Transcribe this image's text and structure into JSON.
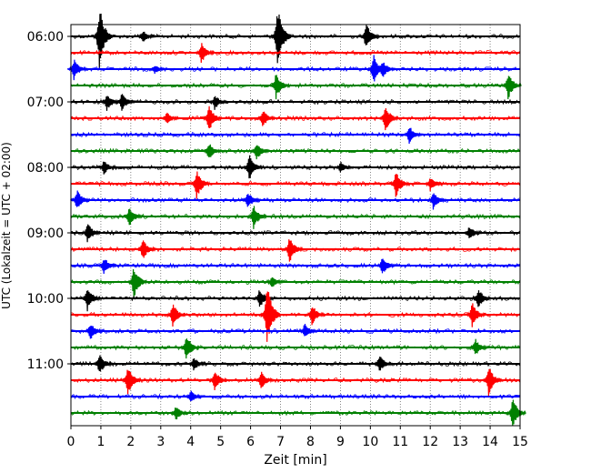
{
  "chart_data": {
    "type": "line",
    "title": "",
    "xlabel": "Zeit  [min]",
    "ylabel": "UTC (Lokalzeit = UTC + 02:00)",
    "xlim": [
      0,
      15
    ],
    "x_ticks": [
      "0",
      "1",
      "2",
      "3",
      "4",
      "5",
      "6",
      "7",
      "8",
      "9",
      "10",
      "11",
      "12",
      "13",
      "14",
      "15"
    ],
    "y_tick_labels": [
      "06:00",
      "07:00",
      "08:00",
      "09:00",
      "10:00",
      "11:00"
    ],
    "grid": "vertical dotted lines at each minute",
    "trace_minutes": 15,
    "trace_colors": [
      "#000000",
      "#ff0000",
      "#0000ff",
      "#008000"
    ],
    "traces": [
      {
        "start": "06:00",
        "color": "#000000",
        "events": [
          {
            "t": 0.95,
            "amp": 1.0
          },
          {
            "t": 2.4,
            "amp": 0.22
          },
          {
            "t": 6.9,
            "amp": 1.0
          },
          {
            "t": 9.85,
            "amp": 0.45
          }
        ]
      },
      {
        "start": "06:15",
        "color": "#ff0000",
        "events": [
          {
            "t": 4.35,
            "amp": 0.35
          }
        ]
      },
      {
        "start": "06:30",
        "color": "#0000ff",
        "events": [
          {
            "t": 0.1,
            "amp": 0.35
          },
          {
            "t": 2.8,
            "amp": 0.15
          },
          {
            "t": 10.1,
            "amp": 0.5
          },
          {
            "t": 10.4,
            "amp": 0.3
          }
        ]
      },
      {
        "start": "06:45",
        "color": "#008000",
        "events": [
          {
            "t": 6.85,
            "amp": 0.45
          },
          {
            "t": 14.6,
            "amp": 0.45
          }
        ]
      },
      {
        "start": "07:00",
        "color": "#000000",
        "events": [
          {
            "t": 1.2,
            "amp": 0.3
          },
          {
            "t": 1.7,
            "amp": 0.3
          },
          {
            "t": 4.8,
            "amp": 0.25
          }
        ]
      },
      {
        "start": "07:15",
        "color": "#ff0000",
        "events": [
          {
            "t": 3.2,
            "amp": 0.2
          },
          {
            "t": 4.6,
            "amp": 0.45
          },
          {
            "t": 6.4,
            "amp": 0.3
          },
          {
            "t": 10.5,
            "amp": 0.45
          }
        ]
      },
      {
        "start": "07:30",
        "color": "#0000ff",
        "events": [
          {
            "t": 11.3,
            "amp": 0.3
          }
        ]
      },
      {
        "start": "07:45",
        "color": "#008000",
        "events": [
          {
            "t": 4.6,
            "amp": 0.3
          },
          {
            "t": 6.2,
            "amp": 0.3
          }
        ]
      },
      {
        "start": "08:00",
        "color": "#000000",
        "events": [
          {
            "t": 1.1,
            "amp": 0.25
          },
          {
            "t": 5.95,
            "amp": 0.45
          },
          {
            "t": 9.0,
            "amp": 0.2
          }
        ]
      },
      {
        "start": "08:15",
        "color": "#ff0000",
        "events": [
          {
            "t": 4.2,
            "amp": 0.5
          },
          {
            "t": 10.85,
            "amp": 0.45
          },
          {
            "t": 12.0,
            "amp": 0.25
          }
        ]
      },
      {
        "start": "08:30",
        "color": "#0000ff",
        "events": [
          {
            "t": 0.2,
            "amp": 0.35
          },
          {
            "t": 5.9,
            "amp": 0.3
          },
          {
            "t": 12.1,
            "amp": 0.3
          }
        ]
      },
      {
        "start": "08:45",
        "color": "#008000",
        "events": [
          {
            "t": 1.95,
            "amp": 0.35
          },
          {
            "t": 6.1,
            "amp": 0.4
          }
        ]
      },
      {
        "start": "09:00",
        "color": "#000000",
        "events": [
          {
            "t": 0.55,
            "amp": 0.35
          },
          {
            "t": 13.3,
            "amp": 0.25
          }
        ]
      },
      {
        "start": "09:15",
        "color": "#ff0000",
        "events": [
          {
            "t": 2.4,
            "amp": 0.35
          },
          {
            "t": 7.3,
            "amp": 0.45
          }
        ]
      },
      {
        "start": "09:30",
        "color": "#0000ff",
        "events": [
          {
            "t": 1.1,
            "amp": 0.3
          },
          {
            "t": 10.4,
            "amp": 0.3
          }
        ]
      },
      {
        "start": "09:45",
        "color": "#008000",
        "events": [
          {
            "t": 2.1,
            "amp": 0.55
          },
          {
            "t": 6.7,
            "amp": 0.2
          }
        ]
      },
      {
        "start": "10:00",
        "color": "#000000",
        "events": [
          {
            "t": 0.55,
            "amp": 0.4
          },
          {
            "t": 6.3,
            "amp": 0.35
          },
          {
            "t": 13.6,
            "amp": 0.35
          }
        ]
      },
      {
        "start": "10:15",
        "color": "#ff0000",
        "events": [
          {
            "t": 3.4,
            "amp": 0.4
          },
          {
            "t": 6.55,
            "amp": 1.0
          },
          {
            "t": 8.05,
            "amp": 0.35
          },
          {
            "t": 13.4,
            "amp": 0.4
          }
        ]
      },
      {
        "start": "10:30",
        "color": "#0000ff",
        "events": [
          {
            "t": 0.65,
            "amp": 0.3
          },
          {
            "t": 7.8,
            "amp": 0.25
          }
        ]
      },
      {
        "start": "10:45",
        "color": "#008000",
        "events": [
          {
            "t": 3.85,
            "amp": 0.45
          },
          {
            "t": 13.5,
            "amp": 0.3
          }
        ]
      },
      {
        "start": "11:00",
        "color": "#000000",
        "events": [
          {
            "t": 0.95,
            "amp": 0.35
          },
          {
            "t": 4.1,
            "amp": 0.25
          },
          {
            "t": 10.3,
            "amp": 0.3
          }
        ]
      },
      {
        "start": "11:15",
        "color": "#ff0000",
        "events": [
          {
            "t": 1.9,
            "amp": 0.5
          },
          {
            "t": 4.8,
            "amp": 0.35
          },
          {
            "t": 6.35,
            "amp": 0.3
          },
          {
            "t": 13.95,
            "amp": 0.5
          }
        ]
      },
      {
        "start": "11:30",
        "color": "#0000ff",
        "events": [
          {
            "t": 4.0,
            "amp": 0.2
          }
        ]
      },
      {
        "start": "11:45",
        "color": "#008000",
        "events": [
          {
            "t": 3.5,
            "amp": 0.25
          },
          {
            "t": 14.75,
            "amp": 0.5
          }
        ]
      }
    ]
  }
}
